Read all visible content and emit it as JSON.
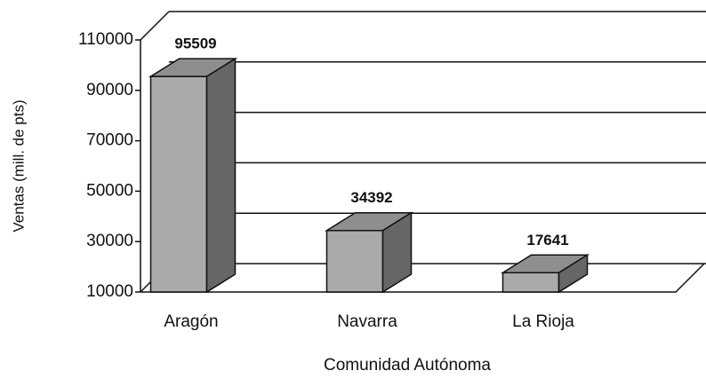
{
  "chart_data": {
    "type": "bar3d",
    "categories": [
      "Aragón",
      "Navarra",
      "La Rioja"
    ],
    "values": [
      95509,
      34392,
      17641
    ],
    "ylim": [
      10000,
      110000
    ],
    "yticks": [
      10000,
      30000,
      50000,
      70000,
      90000,
      110000
    ],
    "y_label": "Ventas (mill. de pts)",
    "x_label": "Comunidad Autónoma",
    "color": "#aaaaaa",
    "grid": true
  }
}
